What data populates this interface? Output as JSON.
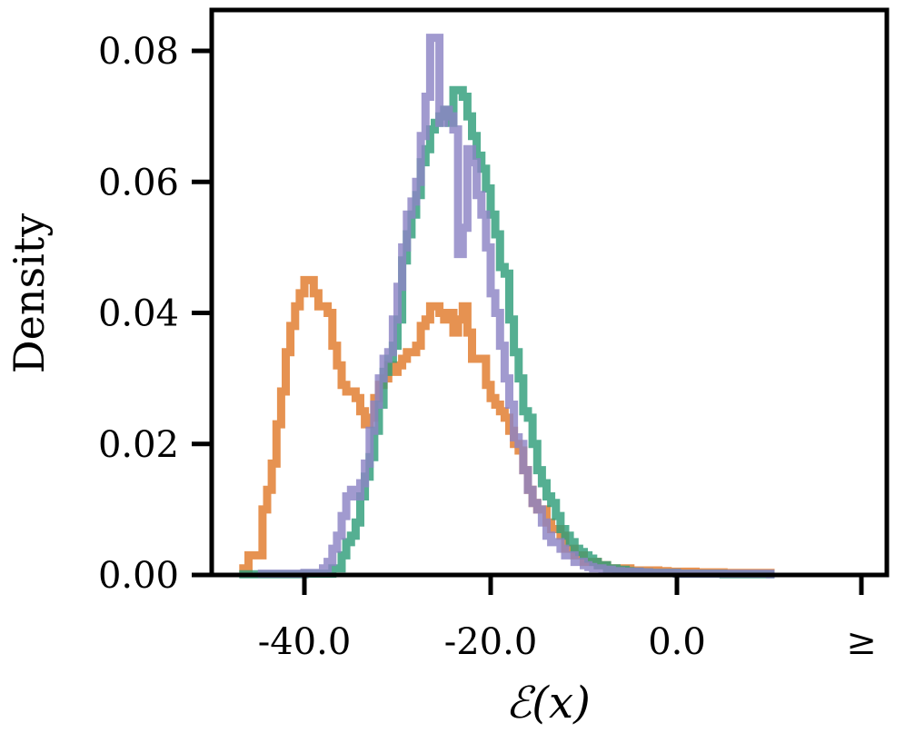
{
  "chart_data": {
    "type": "line",
    "style": "step-histogram",
    "title": "",
    "xlabel": "ℰ(x)",
    "ylabel": "Density",
    "xlim": [
      -50,
      10
    ],
    "ylim": [
      0,
      0.085
    ],
    "grid": false,
    "xticks": [
      {
        "value": -40,
        "label": "-40.0"
      },
      {
        "value": -20,
        "label": "-20.0"
      },
      {
        "value": 0,
        "label": "0.0"
      },
      {
        "value": 20,
        "label": "≥"
      }
    ],
    "yticks": [
      {
        "value": 0.0,
        "label": "0.00"
      },
      {
        "value": 0.02,
        "label": "0.02"
      },
      {
        "value": 0.04,
        "label": "0.04"
      },
      {
        "value": 0.06,
        "label": "0.06"
      },
      {
        "value": 0.08,
        "label": "0.08"
      }
    ],
    "series": [
      {
        "color": "#e07a2b",
        "x": [
          -47,
          -46,
          -45,
          -44.5,
          -44,
          -43.5,
          -43,
          -42.5,
          -42,
          -41.5,
          -41,
          -40.5,
          -40,
          -39.5,
          -39,
          -38.5,
          -38,
          -37.5,
          -37,
          -36.5,
          -36,
          -35.5,
          -35,
          -34.5,
          -34,
          -33.5,
          -33,
          -32.5,
          -32,
          -31.5,
          -31,
          -30.5,
          -30,
          -29.5,
          -29,
          -28.5,
          -28,
          -27.5,
          -27,
          -26.5,
          -26,
          -25.5,
          -25,
          -24.5,
          -24,
          -23.5,
          -23,
          -22.5,
          -22,
          -21.5,
          -21,
          -20.5,
          -20,
          -19.5,
          -19,
          -18.5,
          -18,
          -17.5,
          -17,
          -16.5,
          -16,
          -15.5,
          -15,
          -14.5,
          -14,
          -13.5,
          -13,
          -12.5,
          -12,
          -11.5,
          -11,
          -10.5,
          -10,
          -9.5,
          -9,
          -8.5,
          -8,
          -7.5,
          -7,
          -6.5,
          -6,
          -5.5,
          -5,
          -4,
          -3,
          -2,
          -1,
          0,
          2,
          5,
          8,
          10
        ],
        "y": [
          0.001,
          0.003,
          0.003,
          0.01,
          0.013,
          0.017,
          0.023,
          0.028,
          0.034,
          0.038,
          0.041,
          0.043,
          0.045,
          0.045,
          0.043,
          0.041,
          0.041,
          0.04,
          0.035,
          0.032,
          0.029,
          0.028,
          0.028,
          0.027,
          0.025,
          0.023,
          0.024,
          0.027,
          0.029,
          0.03,
          0.032,
          0.031,
          0.032,
          0.033,
          0.034,
          0.034,
          0.035,
          0.038,
          0.039,
          0.041,
          0.041,
          0.04,
          0.039,
          0.04,
          0.037,
          0.039,
          0.041,
          0.037,
          0.033,
          0.033,
          0.033,
          0.029,
          0.027,
          0.026,
          0.025,
          0.024,
          0.022,
          0.02,
          0.019,
          0.016,
          0.013,
          0.011,
          0.01,
          0.01,
          0.008,
          0.007,
          0.007,
          0.006,
          0.004,
          0.004,
          0.003,
          0.003,
          0.002,
          0.002,
          0.002,
          0.0015,
          0.0015,
          0.001,
          0.001,
          0.001,
          0.001,
          0.001,
          0.0007,
          0.0007,
          0.0007,
          0.0006,
          0.0005,
          0.0005,
          0.0004,
          0.0003,
          0.0003,
          0.0003
        ]
      },
      {
        "color": "#2f9e7a",
        "x": [
          -47,
          -40,
          -37,
          -36.5,
          -36,
          -35.5,
          -35,
          -34.5,
          -34,
          -33.5,
          -33,
          -32.5,
          -32,
          -31.5,
          -31,
          -30.5,
          -30,
          -29.5,
          -29,
          -28.5,
          -28,
          -27.5,
          -27,
          -26.5,
          -26,
          -25.5,
          -25,
          -24.5,
          -24,
          -23.5,
          -23,
          -22.5,
          -22,
          -21.5,
          -21,
          -20.5,
          -20,
          -19.5,
          -19,
          -18.5,
          -18,
          -17.5,
          -17,
          -16.5,
          -16,
          -15.5,
          -15,
          -14.5,
          -14,
          -13.5,
          -13,
          -12.5,
          -12,
          -11.5,
          -11,
          -10.5,
          -10,
          -9.5,
          -9,
          -8.5,
          -8,
          -7.5,
          -7,
          -6.5,
          -6,
          -5.5,
          -5,
          -4.5,
          -4,
          -3,
          -2,
          0,
          5,
          10
        ],
        "y": [
          0.0001,
          0.0002,
          0.001,
          0.001,
          0.003,
          0.005,
          0.006,
          0.008,
          0.012,
          0.015,
          0.018,
          0.022,
          0.026,
          0.031,
          0.033,
          0.035,
          0.039,
          0.048,
          0.052,
          0.055,
          0.058,
          0.063,
          0.065,
          0.068,
          0.069,
          0.07,
          0.071,
          0.069,
          0.074,
          0.074,
          0.073,
          0.07,
          0.067,
          0.064,
          0.062,
          0.059,
          0.055,
          0.052,
          0.047,
          0.046,
          0.039,
          0.034,
          0.03,
          0.025,
          0.024,
          0.02,
          0.016,
          0.014,
          0.012,
          0.011,
          0.009,
          0.007,
          0.006,
          0.005,
          0.004,
          0.0035,
          0.003,
          0.0025,
          0.002,
          0.0015,
          0.0015,
          0.001,
          0.001,
          0.0008,
          0.0008,
          0.0006,
          0.0005,
          0.0005,
          0.0004,
          0.0003,
          0.0003,
          0.0002,
          0.0001,
          0.0001
        ]
      },
      {
        "color": "#8c84c4",
        "x": [
          -45,
          -40,
          -38,
          -37.5,
          -37,
          -36.5,
          -36,
          -35.5,
          -35,
          -34.5,
          -34,
          -33.5,
          -33,
          -32.5,
          -32,
          -31.5,
          -31,
          -30.5,
          -30,
          -29.5,
          -29,
          -28.5,
          -28,
          -27.5,
          -27,
          -26.5,
          -26,
          -25.5,
          -25,
          -24.5,
          -24,
          -23.5,
          -23,
          -22.5,
          -22,
          -21.5,
          -21,
          -20.5,
          -20,
          -19.5,
          -19,
          -18.5,
          -18,
          -17.5,
          -17,
          -16.5,
          -16,
          -15.5,
          -15,
          -14.5,
          -14,
          -13.5,
          -13,
          -12.5,
          -12,
          -11.5,
          -11,
          -10.5,
          -10,
          -9.5,
          -9,
          -8.5,
          -8,
          -7.5,
          -7,
          -6.5,
          -6,
          -5,
          -4,
          -3,
          -2,
          0,
          5,
          10
        ],
        "y": [
          0.0002,
          0.0003,
          0.001,
          0.002,
          0.004,
          0.006,
          0.009,
          0.012,
          0.013,
          0.012,
          0.014,
          0.017,
          0.022,
          0.026,
          0.03,
          0.033,
          0.034,
          0.039,
          0.044,
          0.05,
          0.055,
          0.057,
          0.06,
          0.067,
          0.073,
          0.082,
          0.082,
          0.069,
          0.071,
          0.07,
          0.068,
          0.049,
          0.053,
          0.065,
          0.063,
          0.058,
          0.055,
          0.05,
          0.043,
          0.04,
          0.035,
          0.03,
          0.026,
          0.021,
          0.02,
          0.016,
          0.013,
          0.011,
          0.01,
          0.008,
          0.006,
          0.005,
          0.005,
          0.004,
          0.003,
          0.003,
          0.002,
          0.002,
          0.0015,
          0.0012,
          0.001,
          0.001,
          0.0008,
          0.0008,
          0.0006,
          0.0006,
          0.0005,
          0.0005,
          0.0004,
          0.0003,
          0.0003,
          0.0002,
          0.0002,
          0.0001
        ]
      }
    ]
  }
}
